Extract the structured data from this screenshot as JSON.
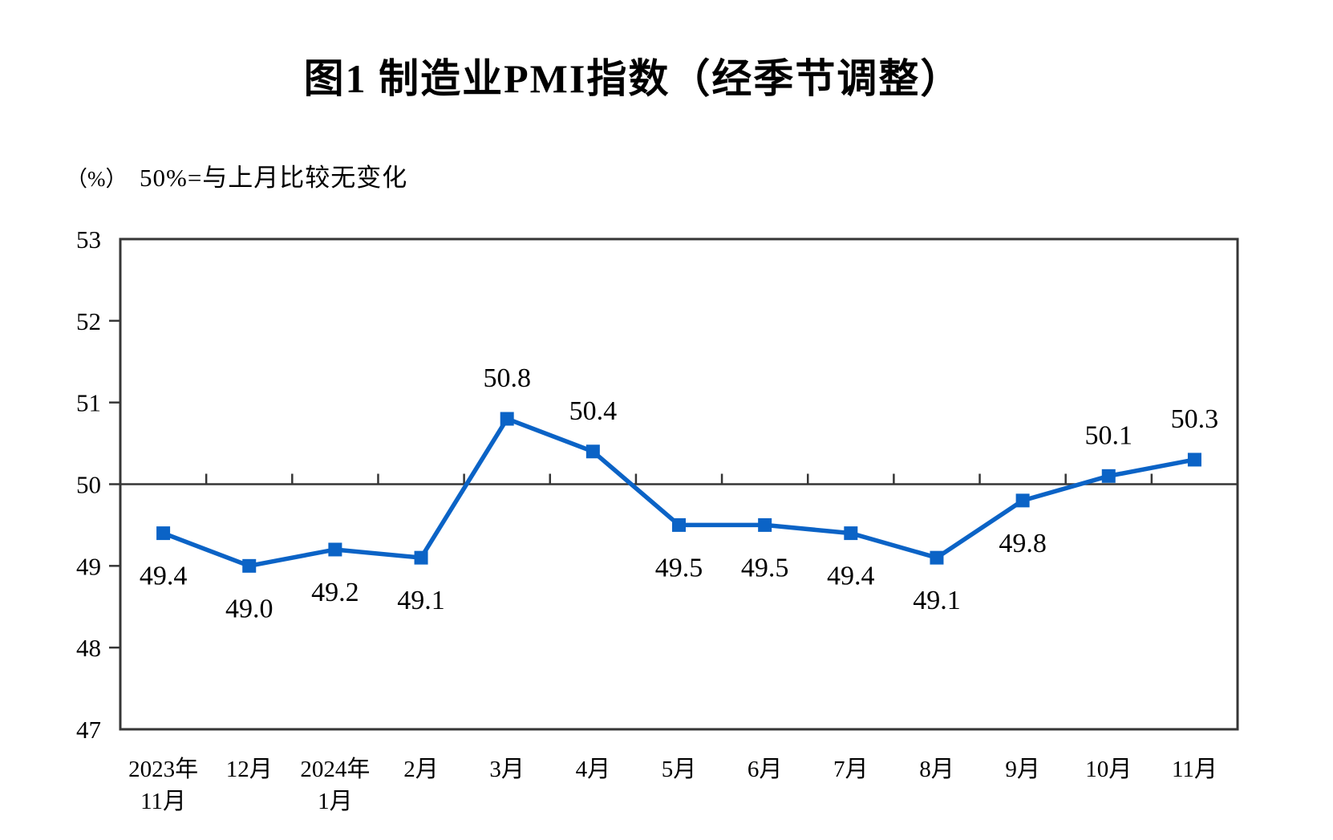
{
  "chart_data": {
    "type": "line",
    "title": "图1 制造业PMI指数（经季节调整）",
    "unit": "（%）",
    "subtitle": "50%=与上月比较无变化",
    "series": [
      {
        "name": "制造业PMI",
        "values": [
          49.4,
          49.0,
          49.2,
          49.1,
          50.8,
          50.4,
          49.5,
          49.5,
          49.4,
          49.1,
          49.8,
          50.1,
          50.3
        ]
      }
    ],
    "data_labels": [
      "49.4",
      "49.0",
      "49.2",
      "49.1",
      "50.8",
      "50.4",
      "49.5",
      "49.5",
      "49.4",
      "49.1",
      "49.8",
      "50.1",
      "50.3"
    ],
    "x": [
      "2023年11月",
      "12月",
      "2024年1月",
      "2月",
      "3月",
      "4月",
      "5月",
      "6月",
      "7月",
      "8月",
      "9月",
      "10月",
      "11月"
    ],
    "x_tick_lines": [
      [
        "2023年",
        "11月"
      ],
      [
        "12月"
      ],
      [
        "2024年",
        "1月"
      ],
      [
        "2月"
      ],
      [
        "3月"
      ],
      [
        "4月"
      ],
      [
        "5月"
      ],
      [
        "6月"
      ],
      [
        "7月"
      ],
      [
        "8月"
      ],
      [
        "9月"
      ],
      [
        "10月"
      ],
      [
        "11月"
      ]
    ],
    "ylim": [
      47,
      53
    ],
    "yticks": [
      47,
      48,
      49,
      50,
      51,
      52,
      53
    ],
    "reference_line": 50,
    "grid": "off",
    "legend": "none",
    "marker": "square",
    "line_color": "#0b63c6",
    "axis_color": "#363636",
    "text_color": "#000000"
  }
}
